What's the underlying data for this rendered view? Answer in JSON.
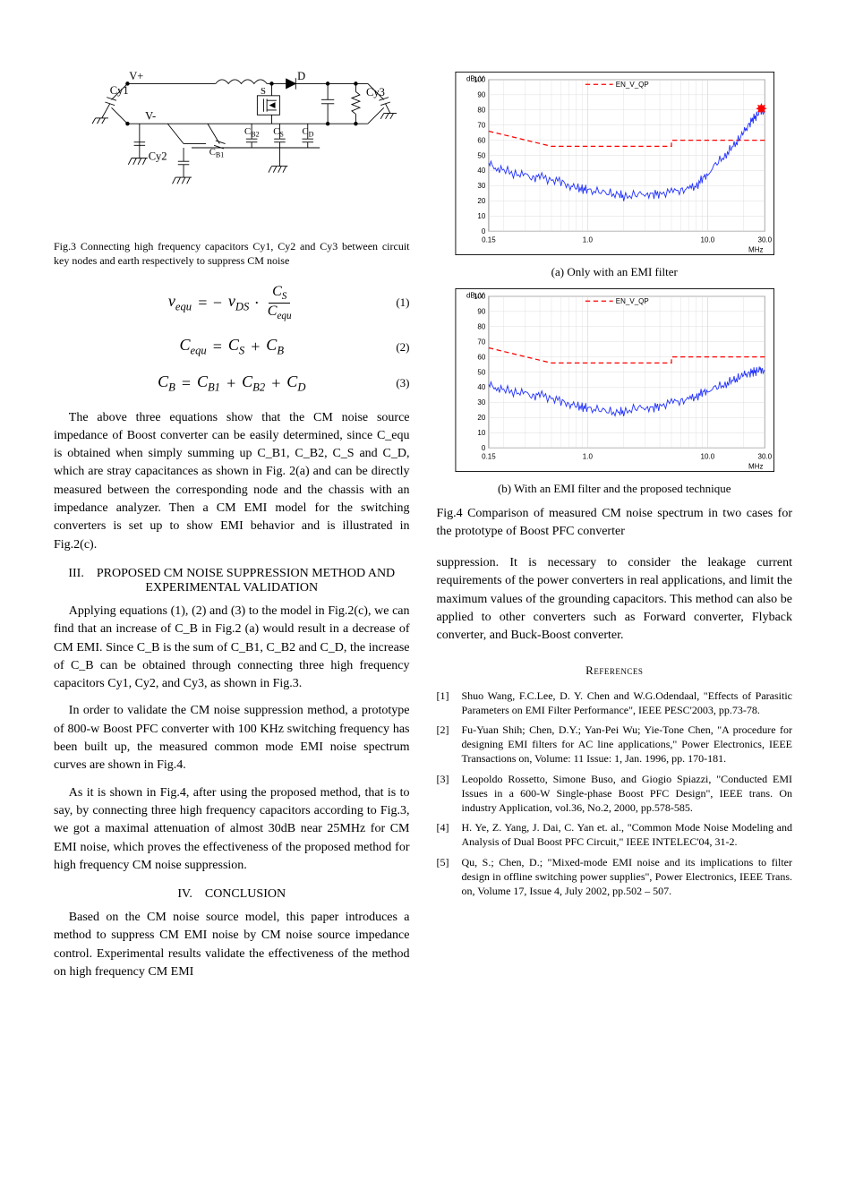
{
  "left": {
    "circuit": {
      "labels": {
        "Vplus": "V+",
        "Vminus": "V-",
        "D": "D",
        "S": "S",
        "Cy1": "Cy1",
        "Cy2": "Cy2",
        "Cy3": "Cy3",
        "CB1": "C",
        "CB1sub": "B1",
        "CB2": "C",
        "CB2sub": "B2",
        "CS": "C",
        "CSsub": "S",
        "CD": "C",
        "CDsub": "D"
      },
      "stroke": "#000000",
      "stroke_width": 1
    },
    "fig3_caption": "Fig.3 Connecting high frequency capacitors Cy1, Cy2 and Cy3 between circuit key nodes and earth respectively to suppress CM noise",
    "eq1": {
      "lhs_v": "v",
      "lhs_sub": "equ",
      "eq": " = −",
      "rhs_v": "v",
      "rhs_sub": "DS",
      "dot": " · ",
      "num_C": "C",
      "num_sub": "S",
      "den_C": "C",
      "den_sub": "equ",
      "num_label": "(1)"
    },
    "eq2": {
      "lhs_C": "C",
      "lhs_sub": "equ",
      "eqsign": " = ",
      "t1_C": "C",
      "t1_sub": "S",
      "plus": " + ",
      "t2_C": "C",
      "t2_sub": "B",
      "num_label": "(2)"
    },
    "eq3": {
      "lhs_C": "C",
      "lhs_sub": "B",
      "eqsign": " = ",
      "t1_C": "C",
      "t1_sub": "B1",
      "plus1": " + ",
      "t2_C": "C",
      "t2_sub": "B2",
      "plus2": " + ",
      "t3_C": "C",
      "t3_sub": "D",
      "num_label": "(3)"
    },
    "para1": "The above three equations show that the CM noise source impedance of Boost converter can be easily determined, since C_equ is obtained when simply summing up C_B1, C_B2, C_S and C_D, which are stray capacitances as shown in Fig. 2(a) and can be directly measured between the corresponding node and the chassis with an impedance analyzer. Then a CM EMI model for the switching converters is set up to show EMI behavior and is illustrated in Fig.2(c).",
    "sec3_roman": "III.",
    "sec3_title": "PROPOSED CM NOISE SUPPRESSION METHOD AND EXPERIMENTAL VALIDATION",
    "para2": "Applying equations (1), (2) and (3) to the model in Fig.2(c), we can find that an increase of C_B in Fig.2 (a) would result in a decrease of CM EMI. Since C_B is the sum of C_B1, C_B2 and C_D, the increase of C_B can be obtained through connecting three high frequency capacitors Cy1, Cy2, and Cy3, as shown in Fig.3.",
    "para3": "In order to validate the CM noise suppression method, a prototype of 800-w Boost PFC converter with 100 KHz switching frequency has been built up, the measured common mode EMI noise spectrum curves are shown in Fig.4.",
    "para4": "As it is shown in Fig.4, after using the proposed method, that is to say, by connecting three high frequency capacitors according to Fig.3, we got a maximal attenuation of almost 30dB near 25MHz for CM EMI noise, which proves the effectiveness of the proposed method for high frequency CM noise suppression.",
    "sec4_roman": "IV.",
    "sec4_title": "CONCLUSION",
    "para5": "Based on the CM noise source model, this paper introduces a method to suppress CM EMI noise by CM noise source impedance control. Experimental results validate the effectiveness of the method on high frequency CM EMI"
  },
  "right": {
    "chart_common": {
      "ylabel": "dBµV",
      "xlabel": "MHz",
      "xticks_labels": [
        "0.15",
        "1.0",
        "10.0",
        "30.0"
      ],
      "yticks": [
        0,
        10,
        20,
        30,
        40,
        50,
        60,
        70,
        80,
        90,
        100
      ],
      "ylim": [
        0,
        100
      ],
      "grid_color": "#d8d8d8",
      "axis_color": "#808080",
      "background": "#ffffff",
      "limit_line_color": "#ff0000",
      "limit_line_dash": "6,4",
      "limit_legend": "EN_V_QP",
      "data_line_color": "#2030ff",
      "data_line_width": 1,
      "border_color": "#000000",
      "label_fontsize": 10,
      "tick_fontsize": 9
    },
    "chart_a": {
      "caption": "(a) Only with an EMI filter",
      "limit_points": [
        [
          0.15,
          66
        ],
        [
          0.5,
          56
        ],
        [
          5,
          56
        ],
        [
          5,
          60
        ],
        [
          30,
          60
        ]
      ],
      "star_point": [
        28,
        80
      ],
      "star_color": "#ff0000",
      "data_points": [
        [
          0.15,
          45
        ],
        [
          0.17,
          42
        ],
        [
          0.2,
          40
        ],
        [
          0.25,
          38
        ],
        [
          0.3,
          37
        ],
        [
          0.35,
          35
        ],
        [
          0.4,
          36
        ],
        [
          0.5,
          34
        ],
        [
          0.6,
          33
        ],
        [
          0.7,
          30
        ],
        [
          0.8,
          29
        ],
        [
          0.9,
          28
        ],
        [
          1.0,
          27
        ],
        [
          1.2,
          26
        ],
        [
          1.5,
          25
        ],
        [
          1.8,
          24
        ],
        [
          2.0,
          23
        ],
        [
          2.5,
          24
        ],
        [
          3.0,
          25
        ],
        [
          3.5,
          24
        ],
        [
          4.0,
          25
        ],
        [
          5.0,
          26
        ],
        [
          6.0,
          27
        ],
        [
          7.0,
          28
        ],
        [
          8.0,
          30
        ],
        [
          9.0,
          34
        ],
        [
          10.0,
          38
        ],
        [
          12.0,
          45
        ],
        [
          14.0,
          50
        ],
        [
          16.0,
          55
        ],
        [
          18.0,
          60
        ],
        [
          20.0,
          65
        ],
        [
          22.0,
          70
        ],
        [
          24.0,
          74
        ],
        [
          26.0,
          77
        ],
        [
          28.0,
          80
        ],
        [
          30.0,
          78
        ]
      ]
    },
    "chart_b": {
      "caption": "(b) With an EMI filter and the proposed technique",
      "limit_points": [
        [
          0.15,
          66
        ],
        [
          0.5,
          56
        ],
        [
          5,
          56
        ],
        [
          5,
          60
        ],
        [
          30,
          60
        ]
      ],
      "data_points": [
        [
          0.15,
          42
        ],
        [
          0.17,
          40
        ],
        [
          0.2,
          38
        ],
        [
          0.25,
          37
        ],
        [
          0.3,
          36
        ],
        [
          0.35,
          34
        ],
        [
          0.4,
          35
        ],
        [
          0.5,
          33
        ],
        [
          0.6,
          31
        ],
        [
          0.7,
          29
        ],
        [
          0.8,
          28
        ],
        [
          0.9,
          27
        ],
        [
          1.0,
          26
        ],
        [
          1.2,
          25
        ],
        [
          1.5,
          24
        ],
        [
          1.8,
          23
        ],
        [
          2.0,
          24
        ],
        [
          2.5,
          26
        ],
        [
          3.0,
          27
        ],
        [
          3.5,
          26
        ],
        [
          4.0,
          28
        ],
        [
          5.0,
          30
        ],
        [
          6.0,
          31
        ],
        [
          7.0,
          32
        ],
        [
          8.0,
          34
        ],
        [
          9.0,
          36
        ],
        [
          10.0,
          38
        ],
        [
          12.0,
          40
        ],
        [
          14.0,
          42
        ],
        [
          16.0,
          44
        ],
        [
          18.0,
          46
        ],
        [
          20.0,
          48
        ],
        [
          22.0,
          49
        ],
        [
          24.0,
          50
        ],
        [
          26.0,
          51
        ],
        [
          28.0,
          52
        ],
        [
          30.0,
          50
        ]
      ]
    },
    "fig4_caption": "Fig.4 Comparison of measured CM noise spectrum in two cases for the prototype of Boost PFC converter",
    "para_right": "suppression. It is necessary to consider the leakage current requirements of the power converters in real applications, and limit the maximum values of the grounding capacitors. This method can also be applied to other converters such as Forward converter, Flyback converter, and Buck-Boost converter.",
    "refs_heading": "References",
    "refs": [
      {
        "n": "[1]",
        "t": "Shuo Wang, F.C.Lee, D. Y. Chen and W.G.Odendaal, \"Effects of Parasitic Parameters on EMI Filter Performance\", IEEE PESC'2003, pp.73-78."
      },
      {
        "n": "[2]",
        "t": "Fu-Yuan Shih; Chen, D.Y.; Yan-Pei Wu; Yie-Tone Chen, \"A procedure for designing EMI filters for AC line applications,\" Power Electronics, IEEE Transactions on, Volume: 11 Issue: 1, Jan. 1996, pp. 170-181."
      },
      {
        "n": "[3]",
        "t": "Leopoldo Rossetto, Simone Buso, and Giogio Spiazzi, \"Conducted EMI Issues in a 600-W Single-phase Boost PFC Design\", IEEE trans. On industry Application, vol.36, No.2, 2000, pp.578-585."
      },
      {
        "n": "[4]",
        "t": "H. Ye, Z. Yang, J. Dai, C. Yan et. al., \"Common Mode Noise Modeling and Analysis of Dual Boost PFC Circuit,\" IEEE INTELEC'04, 31-2."
      },
      {
        "n": "[5]",
        "t": "Qu, S.; Chen, D.; \"Mixed-mode EMI noise and its implications to filter design in offline switching power supplies\", Power Electronics, IEEE Trans. on, Volume 17, Issue 4,  July 2002, pp.502 – 507."
      }
    ]
  }
}
